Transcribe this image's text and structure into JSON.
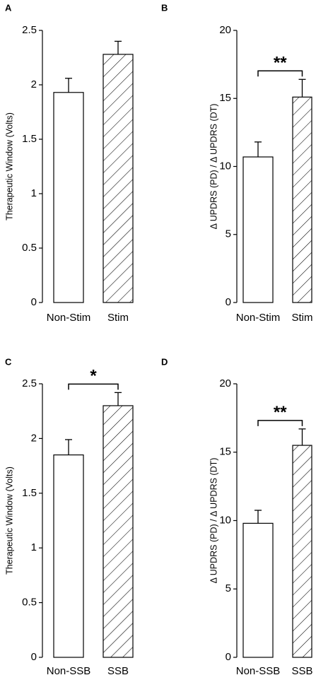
{
  "panels": [
    {
      "letter": "A",
      "chart_data": {
        "type": "bar",
        "categories": [
          "Non-Stim",
          "Stim"
        ],
        "values": [
          1.93,
          2.28
        ],
        "errors": [
          0.13,
          0.12
        ],
        "patterns": [
          "none",
          "hatch"
        ],
        "ylabel": "Therapeutic Window (Volts)",
        "ylim": [
          0,
          2.5
        ],
        "yticks": [
          0,
          0.5,
          1,
          1.5,
          2,
          2.5
        ],
        "ytick_labels": [
          "0",
          "0.5",
          "1",
          "1.5",
          "2",
          "2.5"
        ],
        "significance": ""
      }
    },
    {
      "letter": "B",
      "chart_data": {
        "type": "bar",
        "categories": [
          "Non-Stim",
          "Stim"
        ],
        "values": [
          10.7,
          15.1
        ],
        "errors": [
          1.1,
          1.3
        ],
        "patterns": [
          "none",
          "hatch"
        ],
        "ylabel": "Δ UPDRS (PD) / Δ UPDRS (DT)",
        "ylim": [
          0,
          20
        ],
        "yticks": [
          0,
          5,
          10,
          15,
          20
        ],
        "ytick_labels": [
          "0",
          "5",
          "10",
          "15",
          "20"
        ],
        "significance": "**"
      }
    },
    {
      "letter": "C",
      "chart_data": {
        "type": "bar",
        "categories": [
          "Non-SSB",
          "SSB"
        ],
        "values": [
          1.85,
          2.3
        ],
        "errors": [
          0.14,
          0.12
        ],
        "patterns": [
          "none",
          "hatch"
        ],
        "ylabel": "Therapeutic Window (Volts)",
        "ylim": [
          0,
          2.5
        ],
        "yticks": [
          0,
          0.5,
          1,
          1.5,
          2,
          2.5
        ],
        "ytick_labels": [
          "0",
          "0.5",
          "1",
          "1.5",
          "2",
          "2.5"
        ],
        "significance": "*"
      }
    },
    {
      "letter": "D",
      "chart_data": {
        "type": "bar",
        "categories": [
          "Non-SSB",
          "SSB"
        ],
        "values": [
          9.8,
          15.5
        ],
        "errors": [
          0.95,
          1.2
        ],
        "patterns": [
          "none",
          "hatch"
        ],
        "ylabel": "Δ UPDRS (PD) / Δ UPDRS (DT)",
        "ylim": [
          0,
          20
        ],
        "yticks": [
          0,
          5,
          10,
          15,
          20
        ],
        "ytick_labels": [
          "0",
          "5",
          "10",
          "15",
          "20"
        ],
        "significance": "**"
      }
    }
  ],
  "colors": {
    "bar_fill": "#ffffff",
    "stroke": "#000000"
  }
}
